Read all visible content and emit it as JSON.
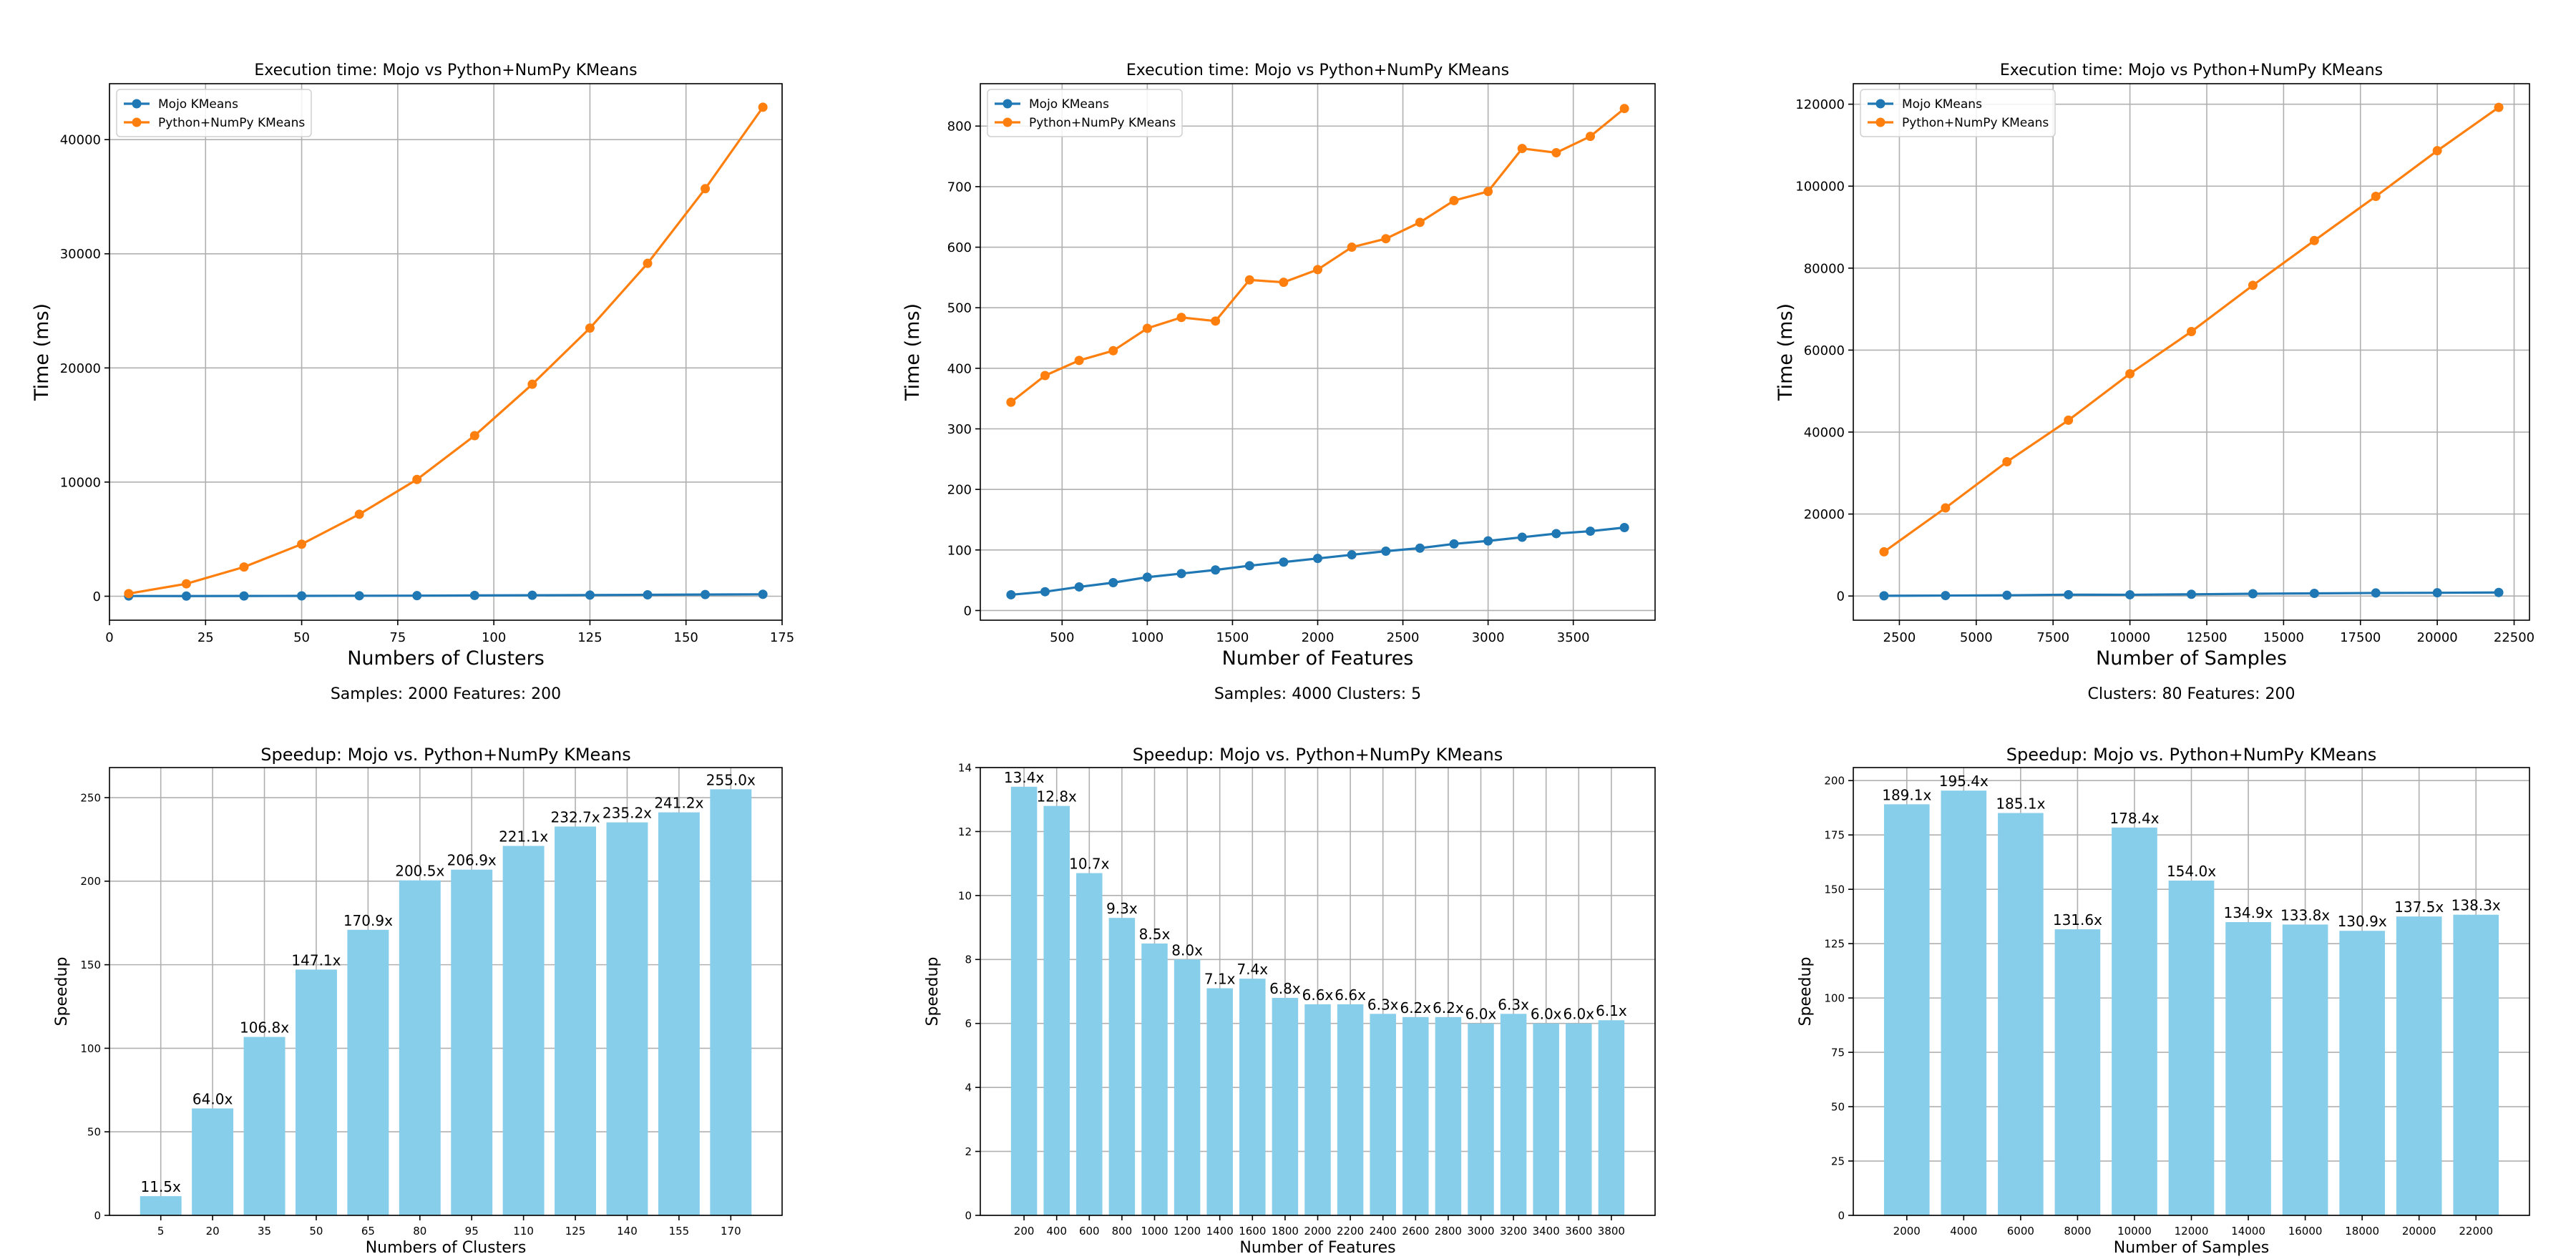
{
  "chart_data": [
    {
      "type": "line",
      "title": "Execution time: Mojo vs Python+NumPy KMeans",
      "xlabel": "Numbers of Clusters",
      "ylabel": "Time (ms)",
      "caption": "Samples: 2000 Features: 200",
      "xlim": [
        0,
        175
      ],
      "ylim": [
        -2100,
        44900
      ],
      "xticks": [
        0,
        25,
        50,
        75,
        100,
        125,
        150,
        175
      ],
      "yticks": [
        0,
        10000,
        20000,
        30000,
        40000
      ],
      "grid": true,
      "legend": "upper-left",
      "x": [
        5,
        20,
        35,
        50,
        65,
        80,
        95,
        110,
        125,
        140,
        155,
        170
      ],
      "series": [
        {
          "name": "Mojo KMeans",
          "color": "#1f77b4",
          "values": [
            20,
            17,
            24,
            31,
            42,
            51,
            68,
            84,
            101,
            124,
            148,
            168
          ]
        },
        {
          "name": "Python+NumPy KMeans",
          "color": "#ff7f0e",
          "values": [
            230,
            1090,
            2560,
            4560,
            7180,
            10230,
            14070,
            18570,
            23490,
            29160,
            35700,
            42840
          ]
        }
      ]
    },
    {
      "type": "line",
      "title": "Execution time: Mojo vs Python+NumPy KMeans",
      "xlabel": "Number of Features",
      "ylabel": "Time (ms)",
      "caption": "Samples: 4000 Clusters: 5",
      "xlim": [
        20,
        3980
      ],
      "ylim": [
        -16,
        870
      ],
      "xticks": [
        500,
        1000,
        1500,
        2000,
        2500,
        3000,
        3500
      ],
      "yticks": [
        0,
        100,
        200,
        300,
        400,
        500,
        600,
        700,
        800
      ],
      "grid": true,
      "legend": "upper-left",
      "x": [
        200,
        400,
        600,
        800,
        1000,
        1200,
        1400,
        1600,
        1800,
        2000,
        2200,
        2400,
        2600,
        2800,
        3000,
        3200,
        3400,
        3600,
        3800
      ],
      "series": [
        {
          "name": "Mojo KMeans",
          "color": "#1f77b4",
          "values": [
            26,
            31,
            39,
            46,
            55,
            61,
            67,
            74,
            80,
            86,
            92,
            98,
            103,
            110,
            115,
            121,
            127,
            131,
            137
          ]
        },
        {
          "name": "Python+NumPy KMeans",
          "color": "#ff7f0e",
          "values": [
            344,
            388,
            413,
            429,
            466,
            484,
            478,
            546,
            542,
            563,
            600,
            614,
            641,
            677,
            692,
            763,
            756,
            783,
            829
          ]
        }
      ]
    },
    {
      "type": "line",
      "title": "Execution time: Mojo vs Python+NumPy KMeans",
      "xlabel": "Number of Samples",
      "ylabel": "Time (ms)",
      "caption": "Clusters: 80 Features: 200",
      "xlim": [
        1000,
        23000
      ],
      "ylim": [
        -5900,
        125000
      ],
      "xticks": [
        2500,
        5000,
        7500,
        10000,
        12500,
        15000,
        17500,
        20000,
        22500
      ],
      "yticks": [
        0,
        20000,
        40000,
        60000,
        80000,
        100000,
        120000
      ],
      "grid": true,
      "legend": "upper-left",
      "x": [
        2000,
        4000,
        6000,
        8000,
        10000,
        12000,
        14000,
        16000,
        18000,
        20000,
        22000
      ],
      "series": [
        {
          "name": "Mojo KMeans",
          "color": "#1f77b4",
          "values": [
            57,
            110,
            177,
            326,
            304,
            419,
            562,
            648,
            745,
            790,
            862
          ]
        },
        {
          "name": "Python+NumPy KMeans",
          "color": "#ff7f0e",
          "values": [
            10780,
            21500,
            32760,
            42900,
            54230,
            64520,
            75800,
            86730,
            97510,
            108650,
            119220
          ]
        }
      ]
    },
    {
      "type": "bar",
      "title": "Speedup: Mojo vs. Python+NumPy KMeans",
      "xlabel": "Numbers of Clusters",
      "ylabel": "Speedup",
      "caption": "Samples: 2000 Features: 200",
      "ylim": [
        0,
        268
      ],
      "yticks": [
        0,
        50,
        100,
        150,
        200,
        250
      ],
      "grid": true,
      "color": "#87ceeb",
      "categories": [
        "5",
        "20",
        "35",
        "50",
        "65",
        "80",
        "95",
        "110",
        "125",
        "140",
        "155",
        "170"
      ],
      "values": [
        11.5,
        64.0,
        106.8,
        147.1,
        170.9,
        200.5,
        206.9,
        221.1,
        232.7,
        235.2,
        241.2,
        255.0
      ],
      "labels": [
        "11.5x",
        "64.0x",
        "106.8x",
        "147.1x",
        "170.9x",
        "200.5x",
        "206.9x",
        "221.1x",
        "232.7x",
        "235.2x",
        "241.2x",
        "255.0x"
      ]
    },
    {
      "type": "bar",
      "title": "Speedup: Mojo vs. Python+NumPy KMeans",
      "xlabel": "Number of Features",
      "ylabel": "Speedup",
      "caption": "Samples: 4000 Clusters: 5",
      "ylim": [
        0,
        14
      ],
      "yticks": [
        0,
        2,
        4,
        6,
        8,
        10,
        12,
        14
      ],
      "grid": true,
      "color": "#87ceeb",
      "categories": [
        "200",
        "400",
        "600",
        "800",
        "1000",
        "1200",
        "1400",
        "1600",
        "1800",
        "2000",
        "2200",
        "2400",
        "2600",
        "2800",
        "3000",
        "3200",
        "3400",
        "3600",
        "3800"
      ],
      "values": [
        13.4,
        12.8,
        10.7,
        9.3,
        8.5,
        8.0,
        7.1,
        7.4,
        6.8,
        6.6,
        6.6,
        6.3,
        6.2,
        6.2,
        6.0,
        6.3,
        6.0,
        6.0,
        6.1
      ],
      "labels": [
        "13.4x",
        "12.8x",
        "10.7x",
        "9.3x",
        "8.5x",
        "8.0x",
        "7.1x",
        "7.4x",
        "6.8x",
        "6.6x",
        "6.6x",
        "6.3x",
        "6.2x",
        "6.2x",
        "6.0x",
        "6.3x",
        "6.0x",
        "6.0x",
        "6.1x"
      ]
    },
    {
      "type": "bar",
      "title": "Speedup: Mojo vs. Python+NumPy KMeans",
      "xlabel": "Number of Samples",
      "ylabel": "Speedup",
      "caption": "Clusters: 80 Features: 200",
      "ylim": [
        0,
        206
      ],
      "yticks": [
        0,
        25,
        50,
        75,
        100,
        125,
        150,
        175,
        200
      ],
      "grid": true,
      "color": "#87ceeb",
      "categories": [
        "2000",
        "4000",
        "6000",
        "8000",
        "10000",
        "12000",
        "14000",
        "16000",
        "18000",
        "20000",
        "22000"
      ],
      "values": [
        189.1,
        195.4,
        185.1,
        131.6,
        178.4,
        154.0,
        134.9,
        133.8,
        130.9,
        137.5,
        138.3
      ],
      "labels": [
        "189.1x",
        "195.4x",
        "185.1x",
        "131.6x",
        "178.4x",
        "154.0x",
        "134.9x",
        "133.8x",
        "130.9x",
        "137.5x",
        "138.3x"
      ]
    }
  ]
}
